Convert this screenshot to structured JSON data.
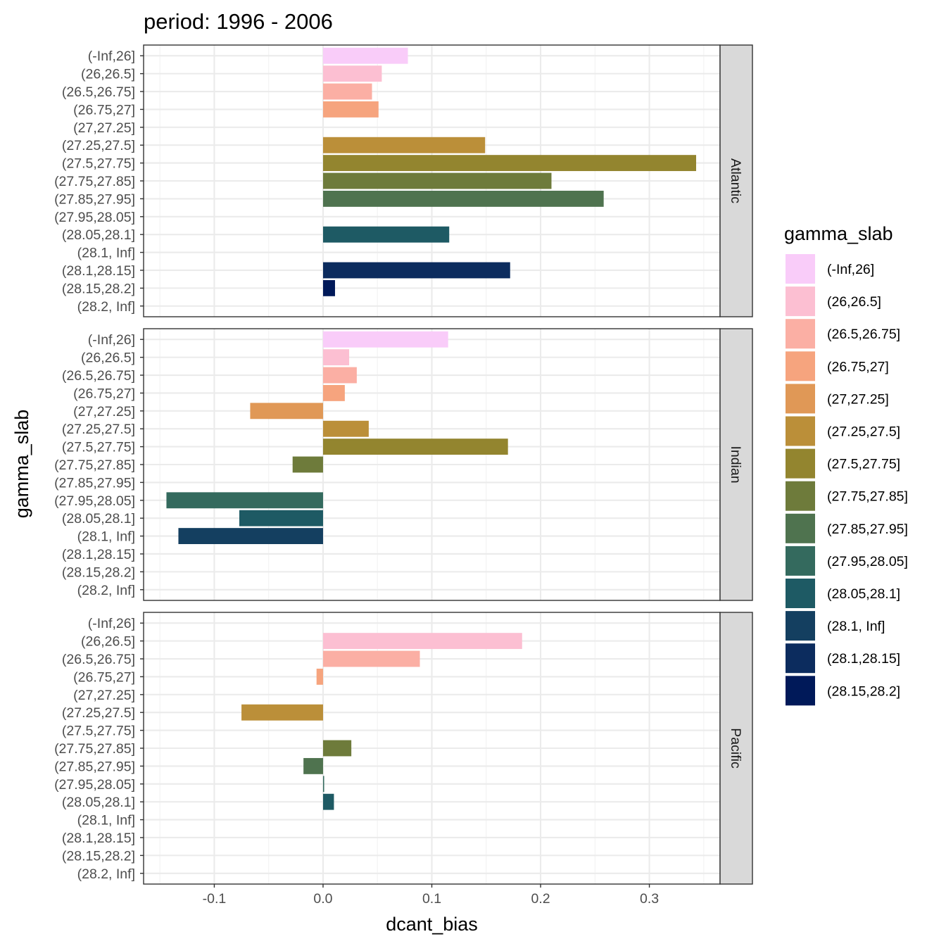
{
  "chart_data": {
    "type": "bar",
    "orientation": "horizontal",
    "title": "period: 1996 - 2006",
    "xlabel": "dcant_bias",
    "ylabel": "gamma_slab",
    "xlim": [
      -0.165,
      0.365
    ],
    "x_ticks": [
      -0.1,
      0.0,
      0.1,
      0.2,
      0.3
    ],
    "x_tick_labels": [
      "-0.1",
      "0.0",
      "0.1",
      "0.2",
      "0.3"
    ],
    "grid": true,
    "legend_position": "right",
    "legend_title": "gamma_slab",
    "categories": [
      "(-Inf,26]",
      "(26,26.5]",
      "(26.5,26.75]",
      "(26.75,27]",
      "(27,27.25]",
      "(27.25,27.5]",
      "(27.5,27.75]",
      "(27.75,27.85]",
      "(27.85,27.95]",
      "(27.95,28.05]",
      "(28.05,28.1]",
      "(28.1, Inf]",
      "(28.1,28.15]",
      "(28.15,28.2]",
      "(28.2, Inf]"
    ],
    "legend": [
      {
        "label": "(-Inf,26]",
        "color": "#F9CCF9"
      },
      {
        "label": "(26,26.5]",
        "color": "#FCBFD2"
      },
      {
        "label": "(26.5,26.75]",
        "color": "#FBAFA4"
      },
      {
        "label": "(26.75,27]",
        "color": "#F6A47E"
      },
      {
        "label": "(27,27.25]",
        "color": "#E09856"
      },
      {
        "label": "(27.25,27.5]",
        "color": "#BB8F39"
      },
      {
        "label": "(27.5,27.75]",
        "color": "#93852F"
      },
      {
        "label": "(27.75,27.85]",
        "color": "#6E7B3B"
      },
      {
        "label": "(27.85,27.95]",
        "color": "#4F734F"
      },
      {
        "label": "(27.95,28.05]",
        "color": "#346A5E"
      },
      {
        "label": "(28.05,28.1]",
        "color": "#1E5A64"
      },
      {
        "label": "(28.1, Inf]",
        "color": "#143F60"
      },
      {
        "label": "(28.1,28.15]",
        "color": "#0C2C5E"
      },
      {
        "label": "(28.15,28.2]",
        "color": "#001959"
      }
    ],
    "panels": [
      {
        "name": "Atlantic",
        "values": [
          0.078,
          0.054,
          0.045,
          0.051,
          null,
          0.149,
          0.343,
          0.21,
          0.258,
          null,
          0.116,
          null,
          0.172,
          0.011,
          null
        ]
      },
      {
        "name": "Indian",
        "values": [
          0.115,
          0.024,
          0.031,
          0.02,
          -0.067,
          0.042,
          0.17,
          -0.028,
          null,
          -0.144,
          -0.077,
          -0.133,
          null,
          null,
          null
        ]
      },
      {
        "name": "Pacific",
        "values": [
          null,
          0.183,
          0.089,
          -0.006,
          null,
          -0.075,
          null,
          0.026,
          -0.018,
          0.001,
          0.01,
          null,
          null,
          null,
          null
        ]
      }
    ]
  }
}
